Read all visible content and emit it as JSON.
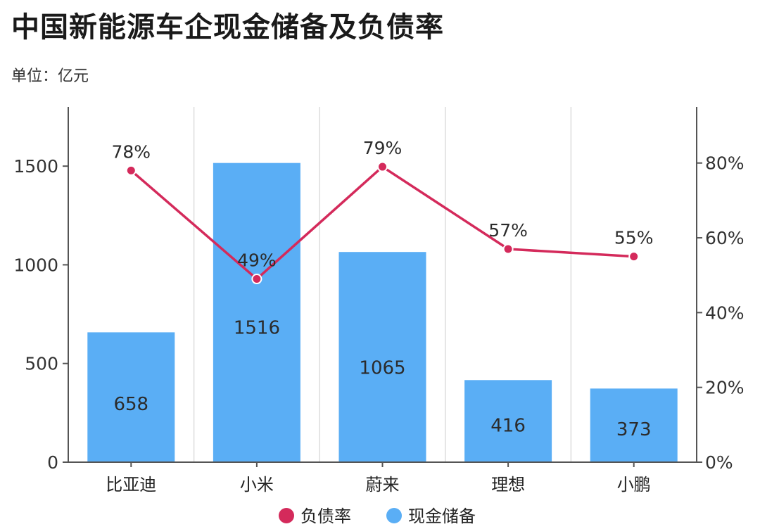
{
  "header": {
    "title": "中国新能源车企现金储备及负债率",
    "unit": "单位：亿元"
  },
  "colors": {
    "bar": "#5aaef5",
    "line": "#d42a5b",
    "axis": "#555555",
    "grid": "#dddddd"
  },
  "chart_data": {
    "type": "bar",
    "categories": [
      "比亚迪",
      "小米",
      "蔚来",
      "理想",
      "小鹏"
    ],
    "series": [
      {
        "name": "现金储备",
        "type": "bar",
        "axis": "left",
        "values": [
          658,
          1516,
          1065,
          416,
          373
        ]
      },
      {
        "name": "负债率",
        "type": "line",
        "axis": "right",
        "values": [
          78,
          49,
          79,
          57,
          55
        ]
      }
    ],
    "data_labels_bar": [
      "658",
      "1516",
      "1065",
      "416",
      "373"
    ],
    "data_labels_line": [
      "78%",
      "49%",
      "79%",
      "57%",
      "55%"
    ],
    "y_left": {
      "range": [
        0,
        1800
      ],
      "ticks": [
        0,
        500,
        1000,
        1500
      ],
      "tick_labels": [
        "0",
        "500",
        "1000",
        "1500"
      ]
    },
    "y_right": {
      "range": [
        0,
        95
      ],
      "ticks": [
        0,
        20,
        40,
        60,
        80
      ],
      "tick_labels": [
        "0%",
        "20%",
        "40%",
        "60%",
        "80%"
      ]
    },
    "grid": "vertical",
    "legend": {
      "position": "bottom",
      "items": [
        "负债率",
        "现金储备"
      ]
    }
  }
}
